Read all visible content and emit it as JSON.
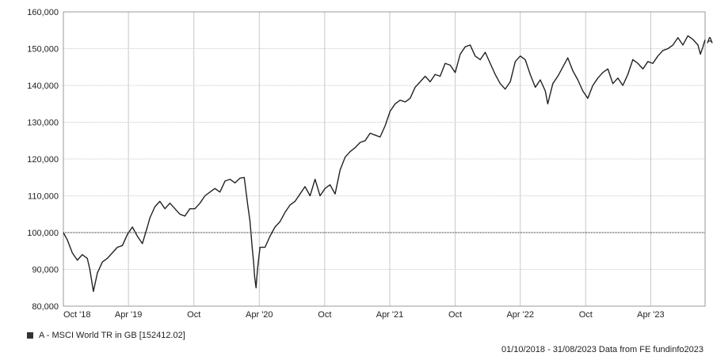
{
  "chart_data": {
    "type": "line",
    "title": "",
    "xlabel": "",
    "ylabel": "",
    "ylim": [
      80000,
      160000
    ],
    "y_ticks": [
      "160,000",
      "150,000",
      "140,000",
      "130,000",
      "120,000",
      "110,000",
      "100,000",
      "90,000",
      "80,000"
    ],
    "x_ticks": [
      "Oct '18",
      "Apr '19",
      "Oct",
      "Apr '20",
      "Oct",
      "Apr '21",
      "Oct",
      "Apr '22",
      "Oct",
      "Apr '23"
    ],
    "baseline": 100000,
    "grid": true,
    "series": [
      {
        "name": "A - MSCI World TR in GB [152412.02]",
        "end_label": "A",
        "color": "#222222",
        "x": [
          "2018-10-01",
          "2018-10-12",
          "2018-10-26",
          "2018-11-09",
          "2018-11-23",
          "2018-12-07",
          "2018-12-14",
          "2018-12-24",
          "2019-01-04",
          "2019-01-18",
          "2019-02-01",
          "2019-02-15",
          "2019-03-01",
          "2019-03-15",
          "2019-03-29",
          "2019-04-12",
          "2019-04-26",
          "2019-05-10",
          "2019-05-24",
          "2019-05-31",
          "2019-06-14",
          "2019-06-28",
          "2019-07-12",
          "2019-07-26",
          "2019-08-09",
          "2019-08-23",
          "2019-09-06",
          "2019-09-20",
          "2019-10-04",
          "2019-10-18",
          "2019-11-01",
          "2019-11-15",
          "2019-11-29",
          "2019-12-13",
          "2019-12-27",
          "2020-01-10",
          "2020-01-24",
          "2020-02-07",
          "2020-02-19",
          "2020-02-28",
          "2020-03-06",
          "2020-03-12",
          "2020-03-16",
          "2020-03-19",
          "2020-03-23",
          "2020-03-27",
          "2020-04-03",
          "2020-04-17",
          "2020-05-01",
          "2020-05-15",
          "2020-05-29",
          "2020-06-12",
          "2020-06-26",
          "2020-07-10",
          "2020-07-24",
          "2020-08-07",
          "2020-08-21",
          "2020-09-04",
          "2020-09-18",
          "2020-10-02",
          "2020-10-16",
          "2020-10-30",
          "2020-11-13",
          "2020-11-27",
          "2020-12-11",
          "2020-12-24",
          "2021-01-08",
          "2021-01-22",
          "2021-02-05",
          "2021-02-19",
          "2021-03-05",
          "2021-03-19",
          "2021-04-02",
          "2021-04-16",
          "2021-04-30",
          "2021-05-14",
          "2021-05-28",
          "2021-06-11",
          "2021-06-25",
          "2021-07-09",
          "2021-07-23",
          "2021-08-06",
          "2021-08-20",
          "2021-09-03",
          "2021-09-17",
          "2021-10-01",
          "2021-10-15",
          "2021-10-29",
          "2021-11-12",
          "2021-11-26",
          "2021-12-10",
          "2021-12-24",
          "2022-01-07",
          "2022-01-21",
          "2022-02-04",
          "2022-02-18",
          "2022-03-04",
          "2022-03-18",
          "2022-04-01",
          "2022-04-15",
          "2022-04-29",
          "2022-05-13",
          "2022-05-27",
          "2022-06-10",
          "2022-06-17",
          "2022-07-01",
          "2022-07-15",
          "2022-07-29",
          "2022-08-12",
          "2022-08-26",
          "2022-09-09",
          "2022-09-23",
          "2022-10-07",
          "2022-10-21",
          "2022-11-04",
          "2022-11-18",
          "2022-12-02",
          "2022-12-16",
          "2022-12-30",
          "2023-01-13",
          "2023-01-27",
          "2023-02-10",
          "2023-02-24",
          "2023-03-10",
          "2023-03-24",
          "2023-04-07",
          "2023-04-21",
          "2023-05-05",
          "2023-05-19",
          "2023-06-02",
          "2023-06-16",
          "2023-06-30",
          "2023-07-14",
          "2023-07-28",
          "2023-08-11",
          "2023-08-18",
          "2023-08-25",
          "2023-08-31"
        ],
        "values": [
          100000,
          98000,
          94500,
          92500,
          94000,
          93000,
          90000,
          84000,
          89000,
          92000,
          93000,
          94500,
          96000,
          96500,
          99500,
          101500,
          99000,
          97000,
          101500,
          104000,
          107000,
          108500,
          106500,
          108000,
          106500,
          105000,
          104500,
          106500,
          106500,
          108000,
          110000,
          111000,
          112000,
          111000,
          114000,
          114500,
          113500,
          114800,
          115000,
          108000,
          103000,
          96000,
          92000,
          88000,
          85000,
          90000,
          96000,
          96000,
          99000,
          101500,
          103000,
          105500,
          107500,
          108500,
          110500,
          112500,
          110000,
          114500,
          110000,
          112000,
          113000,
          110500,
          117000,
          120500,
          122000,
          123000,
          124500,
          125000,
          127000,
          126500,
          126000,
          129000,
          133000,
          135000,
          136000,
          135500,
          136500,
          139500,
          141000,
          142500,
          141000,
          143000,
          142500,
          146000,
          145500,
          143500,
          148500,
          150500,
          151000,
          148000,
          147000,
          149000,
          146000,
          143000,
          140500,
          139000,
          141000,
          146500,
          148000,
          147000,
          143000,
          139500,
          141500,
          138500,
          135000,
          140500,
          142500,
          145000,
          147500,
          144000,
          141500,
          138500,
          136500,
          140000,
          142000,
          143500,
          144500,
          140500,
          142000,
          140000,
          143000,
          147000,
          146000,
          144500,
          146500,
          146000,
          148000,
          149500,
          150000,
          151000,
          153000,
          151000,
          153500,
          152500,
          151000,
          148500,
          150500,
          152412
        ]
      }
    ]
  },
  "legend_text": "A - MSCI World TR in GB [152412.02]",
  "footer_text": "01/10/2018 - 31/08/2023 Data from FE fundinfo2023"
}
